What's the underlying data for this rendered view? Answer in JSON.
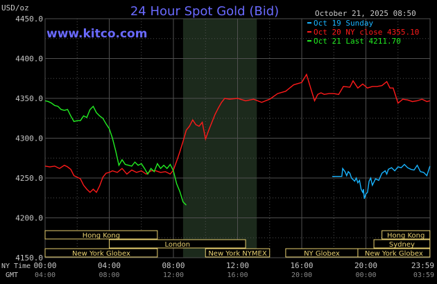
{
  "chart_data": {
    "type": "line",
    "title": "24 Hour Spot Gold (Bid)",
    "y_unit": "USD/oz",
    "watermark": "www.kitco.com",
    "timestamp": "October 21, 2025 08:50",
    "ylim": [
      4150,
      4450
    ],
    "y_ticks": [
      "4450.0",
      "4400.0",
      "4350.0",
      "4300.0",
      "4250.0",
      "4200.0",
      "4150.0"
    ],
    "x_axis": {
      "row1_label": "NY Time",
      "row2_label": "GMT",
      "ny_ticks": [
        "00:00",
        "04:00",
        "08:00",
        "12:00",
        "16:00",
        "20:00",
        "23:59"
      ],
      "gmt_ticks": [
        "04:00",
        "08:00",
        "12:00",
        "16:00",
        "20:00",
        "00:00",
        "03:59"
      ]
    },
    "grid": true,
    "legend_position": "top-right",
    "colors": {
      "background": "#000000",
      "grid": "#505050",
      "shade": "#1c2a1c",
      "title": "#6a6aff",
      "watermark": "#6a6aff",
      "axis_text": "#c8c8c8",
      "oct19": "#19b4ff",
      "oct20": "#ff1a1a",
      "oct21": "#22ee22",
      "session_box": "#e8d070"
    },
    "series": [
      {
        "name": "Oct 19 Sunday",
        "color": "#19b4ff",
        "x": [
          17.9,
          18.5,
          18.55,
          18.7,
          18.8,
          18.9,
          19.0,
          19.1,
          19.2,
          19.3,
          19.4,
          19.5,
          19.6,
          19.7,
          19.8,
          19.85,
          19.9,
          20.0,
          20.1,
          20.2,
          20.3,
          20.4,
          20.6,
          20.8,
          21.0,
          21.2,
          21.3,
          21.4,
          21.6,
          21.8,
          22.0,
          22.2,
          22.4,
          22.6,
          22.8,
          23.0,
          23.2,
          23.4,
          23.6,
          23.8,
          23.99
        ],
        "y": [
          4252,
          4252,
          4262,
          4258,
          4253,
          4258,
          4256,
          4250,
          4248,
          4246,
          4250,
          4244,
          4247,
          4236,
          4232,
          4236,
          4224,
          4230,
          4232,
          4246,
          4250,
          4241,
          4249,
          4247,
          4256,
          4259,
          4255,
          4261,
          4263,
          4259,
          4264,
          4263,
          4267,
          4263,
          4261,
          4260,
          4266,
          4258,
          4257,
          4253,
          4265
        ]
      },
      {
        "name": "Oct 20 NY close 4355.10",
        "color": "#ff1a1a",
        "x": [
          0.0,
          0.3,
          0.6,
          0.9,
          1.2,
          1.4,
          1.6,
          1.8,
          2.0,
          2.2,
          2.4,
          2.6,
          2.8,
          3.0,
          3.2,
          3.4,
          3.6,
          3.8,
          4.0,
          4.2,
          4.5,
          4.8,
          5.1,
          5.4,
          5.7,
          6.0,
          6.3,
          6.6,
          6.9,
          7.2,
          7.5,
          7.8,
          8.0,
          8.2,
          8.4,
          8.6,
          8.8,
          9.0,
          9.2,
          9.4,
          9.6,
          9.8,
          10.0,
          10.2,
          10.4,
          10.6,
          10.8,
          11.0,
          11.2,
          11.5,
          12.0,
          12.5,
          13.0,
          13.5,
          14.0,
          14.5,
          15.0,
          15.5,
          16.0,
          16.3,
          16.6,
          16.8,
          17.0,
          17.2,
          17.4,
          17.7,
          18.0,
          18.3,
          18.6,
          19.0,
          19.2,
          19.5,
          19.8,
          20.1,
          20.4,
          20.7,
          21.0,
          21.3,
          21.5,
          21.7,
          22.0,
          22.3,
          22.6,
          22.9,
          23.2,
          23.5,
          23.8,
          23.99
        ],
        "y": [
          4265,
          4264,
          4265,
          4262,
          4266,
          4264,
          4261,
          4253,
          4251,
          4249,
          4241,
          4236,
          4232,
          4236,
          4232,
          4240,
          4251,
          4256,
          4257,
          4259,
          4257,
          4262,
          4255,
          4260,
          4257,
          4259,
          4255,
          4259,
          4259,
          4257,
          4258,
          4255,
          4260,
          4271,
          4283,
          4296,
          4310,
          4315,
          4323,
          4317,
          4315,
          4320,
          4299,
          4310,
          4320,
          4330,
          4338,
          4345,
          4350,
          4349,
          4350,
          4347,
          4349,
          4345,
          4349,
          4356,
          4359,
          4367,
          4370,
          4380,
          4360,
          4347,
          4355,
          4357,
          4355,
          4356,
          4356,
          4355,
          4365,
          4364,
          4372,
          4363,
          4368,
          4363,
          4365,
          4365,
          4366,
          4371,
          4363,
          4363,
          4344,
          4349,
          4348,
          4346,
          4347,
          4349,
          4346,
          4347
        ]
      },
      {
        "name": "Oct 21 Last 4211.70",
        "color": "#22ee22",
        "x": [
          0.0,
          0.2,
          0.4,
          0.6,
          0.8,
          1.0,
          1.2,
          1.4,
          1.6,
          1.8,
          2.0,
          2.2,
          2.4,
          2.6,
          2.8,
          3.0,
          3.2,
          3.4,
          3.6,
          3.8,
          4.0,
          4.2,
          4.4,
          4.6,
          4.8,
          5.0,
          5.2,
          5.4,
          5.6,
          5.8,
          6.0,
          6.2,
          6.4,
          6.6,
          6.8,
          7.0,
          7.2,
          7.4,
          7.6,
          7.8,
          8.0,
          8.2,
          8.4,
          8.6,
          8.8
        ],
        "y": [
          4347,
          4346,
          4344,
          4341,
          4340,
          4336,
          4335,
          4336,
          4328,
          4321,
          4322,
          4322,
          4328,
          4326,
          4336,
          4340,
          4332,
          4328,
          4325,
          4318,
          4312,
          4300,
          4284,
          4266,
          4273,
          4267,
          4266,
          4265,
          4270,
          4266,
          4268,
          4262,
          4255,
          4262,
          4258,
          4268,
          4262,
          4266,
          4262,
          4267,
          4259,
          4243,
          4233,
          4220,
          4216
        ]
      }
    ],
    "sessions": [
      {
        "label": "Hong Kong",
        "start": 0.0,
        "end": 7.0,
        "row": 1
      },
      {
        "label": "London",
        "start": 4.0,
        "end": 12.5,
        "row": 2
      },
      {
        "label": "New York Globex",
        "start": 0.0,
        "end": 7.0,
        "row": 3
      },
      {
        "label": "New York NYMEX",
        "start": 10.0,
        "end": 14.0,
        "row": 3
      },
      {
        "label": "NY Globex",
        "start": 15.0,
        "end": 19.5,
        "row": 3
      },
      {
        "label": "Hong Kong",
        "start": 21.0,
        "end": 23.99,
        "row": 1
      },
      {
        "label": "Sydney",
        "start": 20.5,
        "end": 23.99,
        "row": 2
      },
      {
        "label": "New York Globex",
        "start": 19.5,
        "end": 23.99,
        "row": 3
      }
    ],
    "shaded_x_range": [
      8.6,
      13.2
    ]
  }
}
